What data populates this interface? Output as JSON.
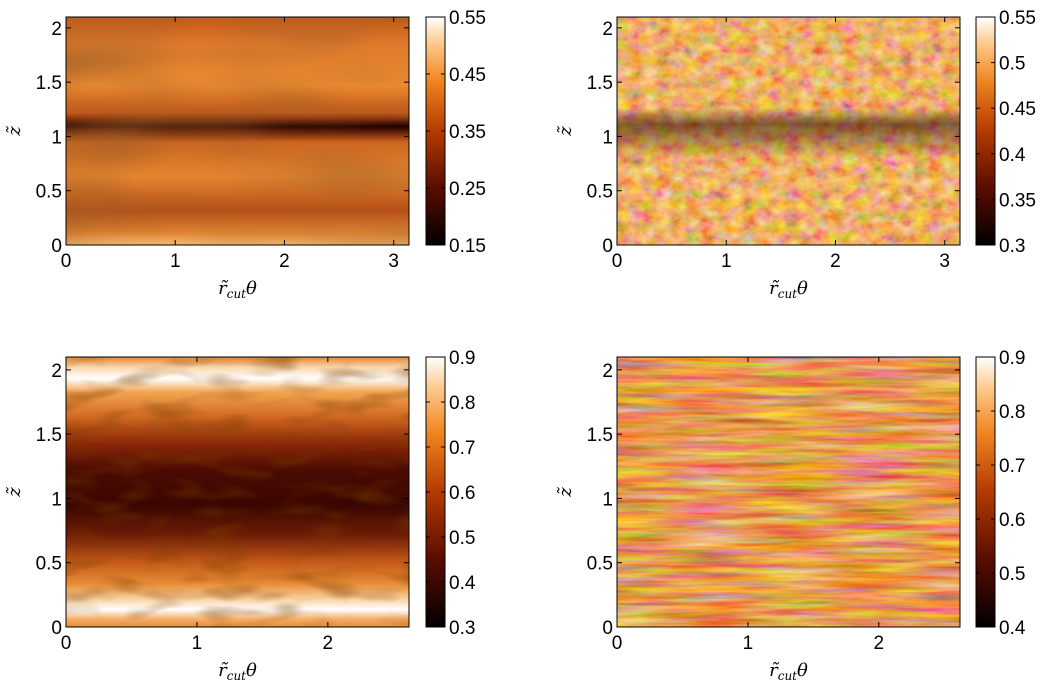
{
  "chart_data": [
    {
      "type": "heatmap",
      "xlabel": "r̃cutθ",
      "xlabel_main": "r̃",
      "xlabel_sub": "cut",
      "xlabel_tail": "θ",
      "ylabel": "z̃",
      "xlim": [
        0,
        3.14
      ],
      "ylim": [
        0,
        2.1
      ],
      "xticks": [
        0,
        1,
        2,
        3
      ],
      "yticks": [
        0,
        0.5,
        1,
        1.5,
        2
      ],
      "xtick_labels": [
        "0",
        "1",
        "2",
        "3"
      ],
      "ytick_labels": [
        "0",
        "0.5",
        "1",
        "1.5",
        "2"
      ],
      "colorbar": {
        "range": [
          0.15,
          0.55
        ],
        "ticks": [
          0.15,
          0.25,
          0.35,
          0.45,
          0.55
        ],
        "tick_labels": [
          "0.15",
          "0.25",
          "0.35",
          "0.45",
          "0.55"
        ]
      },
      "pattern": "smooth"
    },
    {
      "type": "heatmap",
      "xlabel": "r̃cutθ",
      "xlabel_main": "r̃",
      "xlabel_sub": "cut",
      "xlabel_tail": "θ",
      "ylabel": "z̃",
      "xlim": [
        0,
        3.14
      ],
      "ylim": [
        0,
        2.1
      ],
      "xticks": [
        0,
        1,
        2,
        3
      ],
      "yticks": [
        0,
        0.5,
        1,
        1.5,
        2
      ],
      "xtick_labels": [
        "0",
        "1",
        "2",
        "3"
      ],
      "ytick_labels": [
        "0",
        "0.5",
        "1",
        "1.5",
        "2"
      ],
      "colorbar": {
        "range": [
          0.3,
          0.55
        ],
        "ticks": [
          0.3,
          0.35,
          0.4,
          0.45,
          0.5,
          0.55
        ],
        "tick_labels": [
          "0.3",
          "0.35",
          "0.4",
          "0.45",
          "0.5",
          "0.55"
        ]
      },
      "pattern": "turbulent"
    },
    {
      "type": "heatmap",
      "xlabel": "r̃cutθ",
      "xlabel_main": "r̃",
      "xlabel_sub": "cut",
      "xlabel_tail": "θ",
      "ylabel": "z̃",
      "xlim": [
        0,
        2.62
      ],
      "ylim": [
        0,
        2.1
      ],
      "xticks": [
        0,
        1,
        2
      ],
      "yticks": [
        0,
        0.5,
        1,
        1.5,
        2
      ],
      "xtick_labels": [
        "0",
        "1",
        "2"
      ],
      "ytick_labels": [
        "0",
        "0.5",
        "1",
        "1.5",
        "2"
      ],
      "colorbar": {
        "range": [
          0.3,
          0.9
        ],
        "ticks": [
          0.3,
          0.4,
          0.5,
          0.6,
          0.7,
          0.8,
          0.9
        ],
        "tick_labels": [
          "0.3",
          "0.4",
          "0.5",
          "0.6",
          "0.7",
          "0.8",
          "0.9"
        ]
      },
      "pattern": "banded"
    },
    {
      "type": "heatmap",
      "xlabel": "r̃cutθ",
      "xlabel_main": "r̃",
      "xlabel_sub": "cut",
      "xlabel_tail": "θ",
      "ylabel": "z̃",
      "xlim": [
        0,
        2.62
      ],
      "ylim": [
        0,
        2.1
      ],
      "xticks": [
        0,
        1,
        2
      ],
      "yticks": [
        0,
        0.5,
        1,
        1.5,
        2
      ],
      "xtick_labels": [
        "0",
        "1",
        "2"
      ],
      "ytick_labels": [
        "0",
        "0.5",
        "1",
        "1.5",
        "2"
      ],
      "colorbar": {
        "range": [
          0.4,
          0.9
        ],
        "ticks": [
          0.4,
          0.5,
          0.6,
          0.7,
          0.8,
          0.9
        ],
        "tick_labels": [
          "0.4",
          "0.5",
          "0.6",
          "0.7",
          "0.8",
          "0.9"
        ]
      },
      "pattern": "streaky"
    }
  ]
}
